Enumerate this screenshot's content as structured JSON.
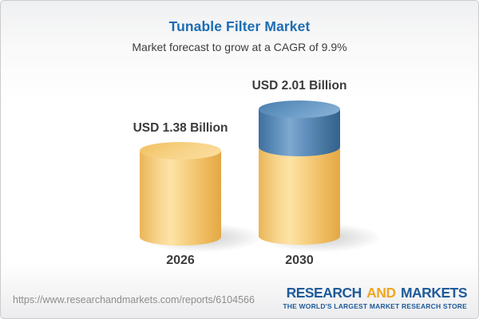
{
  "header": {
    "title": "Tunable Filter Market",
    "subtitle": "Market forecast to grow at a CAGR of 9.9%"
  },
  "chart_data": {
    "type": "bar",
    "subtype": "3d-cylinder",
    "title": "Tunable Filter Market",
    "subtitle": "Market forecast to grow at a CAGR of 9.9%",
    "unit": "USD Billion",
    "cagr_percent": 9.9,
    "categories": [
      "2026",
      "2030"
    ],
    "values": [
      1.38,
      2.01
    ],
    "value_labels": [
      "USD 1.38 Billion",
      "USD 2.01 Billion"
    ],
    "legend": "none",
    "grid": false,
    "colors": {
      "base_segment": "#f2c878",
      "growth_segment": "#4d80ad",
      "title_blue": "#1c6db3",
      "label_text": "#3b3b3b"
    }
  },
  "footer": {
    "url": "https://www.researchandmarkets.com/reports/6104566",
    "logo": {
      "word1": "RESEARCH",
      "word2": "AND",
      "word3": "MARKETS",
      "tagline": "THE WORLD'S LARGEST MARKET RESEARCH STORE",
      "blue": "#1e5a99",
      "gold": "#f0a621"
    }
  }
}
